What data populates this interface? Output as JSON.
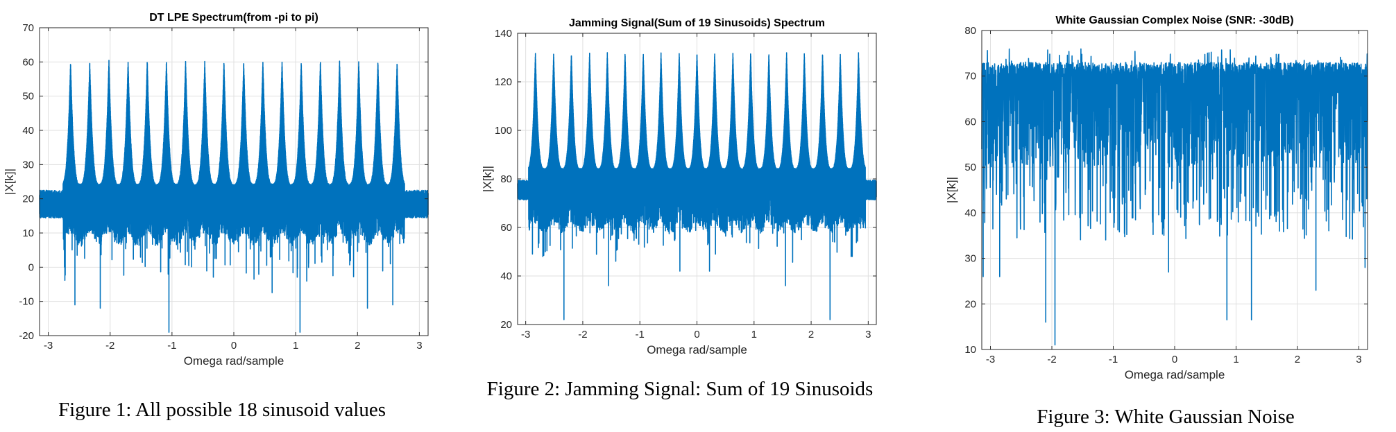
{
  "figures": [
    {
      "caption": "Figure 1: All possible 18 sinusoid values",
      "chart_data": {
        "type": "line",
        "title": "DT LPE Spectrum(from -pi to pi)",
        "xlabel": "Omega rad/sample",
        "ylabel": "|X[k]|",
        "xlim": [
          -3.1416,
          3.1416
        ],
        "ylim": [
          -20,
          70
        ],
        "xticks": [
          -3,
          -2,
          -1,
          0,
          1,
          2,
          3
        ],
        "yticks": [
          -20,
          -10,
          0,
          10,
          20,
          30,
          40,
          50,
          60,
          70
        ],
        "grid": true,
        "series_color": "#0072BD",
        "peaks": {
          "count": 18,
          "frequencies": [
            -2.64,
            -2.33,
            -2.02,
            -1.71,
            -1.4,
            -1.09,
            -0.78,
            -0.47,
            -0.16,
            0.16,
            0.47,
            0.78,
            1.09,
            1.4,
            1.71,
            2.02,
            2.33,
            2.64
          ],
          "peak_value": 60.3,
          "band_top": 24,
          "base_level": 19,
          "edge_level": 15,
          "deep_dips": [
            [
              -2.57,
              -11
            ],
            [
              -2.16,
              -12
            ],
            [
              -1.05,
              -19
            ],
            [
              1.07,
              -19
            ],
            [
              2.16,
              -12
            ],
            [
              2.57,
              -11
            ]
          ]
        }
      }
    },
    {
      "caption": "Figure 2: Jamming Signal: Sum of 19 Sinusoids",
      "chart_data": {
        "type": "line",
        "title": "Jamming Signal(Sum of 19 Sinusoids) Spectrum",
        "xlabel": "Omega rad/sample",
        "ylabel": "|X[k]|",
        "xlim": [
          -3.1416,
          3.1416
        ],
        "ylim": [
          20,
          140
        ],
        "xticks": [
          -3,
          -2,
          -1,
          0,
          1,
          2,
          3
        ],
        "yticks": [
          20,
          40,
          60,
          80,
          100,
          120,
          140
        ],
        "grid": true,
        "series_color": "#0072BD",
        "peaks": {
          "count": 19,
          "frequencies": [
            -2.83,
            -2.51,
            -2.2,
            -1.88,
            -1.57,
            -1.26,
            -0.94,
            -0.63,
            -0.31,
            0.0,
            0.31,
            0.63,
            0.94,
            1.26,
            1.57,
            1.88,
            2.2,
            2.51,
            2.83
          ],
          "peak_value": 132,
          "band_top": 84,
          "base_level": 76,
          "edge_level": 72,
          "deep_dips": [
            [
              -2.33,
              22
            ],
            [
              -2.7,
              48
            ],
            [
              -1.55,
              36
            ],
            [
              -0.3,
              42
            ],
            [
              0.22,
              42
            ],
            [
              1.55,
              36
            ],
            [
              2.33,
              22
            ],
            [
              2.7,
              48
            ]
          ]
        }
      }
    },
    {
      "caption": "Figure 3: White Gaussian Noise",
      "chart_data": {
        "type": "line",
        "title": "White Gaussian Complex Noise (SNR: -30dB)",
        "xlabel": "Omega rad/sample",
        "ylabel": "|X[k]|",
        "xlim": [
          -3.1416,
          3.1416
        ],
        "ylim": [
          10,
          80
        ],
        "xticks": [
          -3,
          -2,
          -1,
          0,
          1,
          2,
          3
        ],
        "yticks": [
          10,
          20,
          30,
          40,
          50,
          60,
          70,
          80
        ],
        "grid": true,
        "series_color": "#0072BD",
        "noise": {
          "band_low": 50,
          "band_high": 72,
          "max": 76,
          "deep_dips": [
            [
              -3.12,
              26
            ],
            [
              -2.85,
              26
            ],
            [
              -2.1,
              16
            ],
            [
              -1.95,
              11
            ],
            [
              -0.1,
              27
            ],
            [
              0.85,
              16.5
            ],
            [
              1.25,
              16.5
            ],
            [
              2.3,
              23
            ],
            [
              3.1,
              28
            ]
          ]
        }
      }
    }
  ]
}
